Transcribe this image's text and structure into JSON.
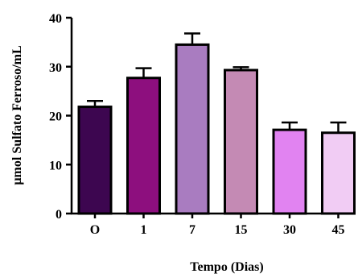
{
  "chart_data": {
    "type": "bar",
    "title": "",
    "xlabel": "Tempo (Dias)",
    "ylabel": "µmol Sulfato Ferroso/mL",
    "categories": [
      "O",
      "1",
      "7",
      "15",
      "30",
      "45"
    ],
    "values": [
      21.8,
      27.7,
      34.5,
      29.3,
      17.1,
      16.5
    ],
    "errors": [
      1.2,
      2.0,
      2.3,
      0.6,
      1.5,
      2.1
    ],
    "colors": [
      "#3d0650",
      "#8d0f7e",
      "#a97cc0",
      "#c48ab4",
      "#e183f1",
      "#f1ccf4"
    ],
    "ylim": [
      0,
      40
    ],
    "yticks": [
      "0",
      "10",
      "20",
      "30",
      "40"
    ],
    "grid": false,
    "legend": "none"
  }
}
